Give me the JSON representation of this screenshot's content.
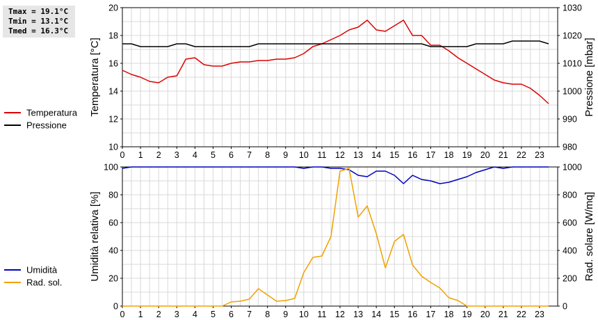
{
  "stats": [
    "Tmax = 19.1°C",
    "Tmin = 13.1°C",
    "Tmed = 16.3°C"
  ],
  "colors": {
    "temperature": "#dd0000",
    "pressure": "#000000",
    "humidity": "#0000bb",
    "radiation": "#f0a000"
  },
  "chart_data": [
    {
      "type": "line",
      "xlabel": "",
      "xlim": [
        0,
        24
      ],
      "xticks": [
        "0",
        "1",
        "2",
        "3",
        "4",
        "5",
        "6",
        "7",
        "8",
        "9",
        "10",
        "11",
        "12",
        "13",
        "14",
        "15",
        "16",
        "17",
        "18",
        "19",
        "20",
        "21",
        "22",
        "23"
      ],
      "ylabel": "Temperatura [°C]",
      "ylim": [
        10,
        20
      ],
      "yticks": [
        "10",
        "12",
        "14",
        "16",
        "18",
        "20"
      ],
      "y2label": "Pressione [mbar]",
      "y2lim": [
        980,
        1030
      ],
      "y2ticks": [
        "980",
        "990",
        "1000",
        "1010",
        "1020",
        "1030"
      ],
      "grid": true,
      "legend": "left",
      "series": [
        {
          "name": "Temperatura",
          "axis": "left",
          "x": [
            0,
            0.5,
            1,
            1.5,
            2,
            2.5,
            3,
            3.5,
            4,
            4.5,
            5,
            5.5,
            6,
            6.5,
            7,
            7.5,
            8,
            8.5,
            9,
            9.5,
            10,
            10.5,
            11,
            11.5,
            12,
            12.5,
            13,
            13.5,
            14,
            14.5,
            15,
            15.5,
            16,
            16.5,
            17,
            17.5,
            18,
            18.5,
            19,
            19.5,
            20,
            20.5,
            21,
            21.5,
            22,
            22.5,
            23,
            23.5
          ],
          "values": [
            15.5,
            15.2,
            15.0,
            14.7,
            14.6,
            15.0,
            15.1,
            16.3,
            16.4,
            15.9,
            15.8,
            15.8,
            16.0,
            16.1,
            16.1,
            16.2,
            16.2,
            16.3,
            16.3,
            16.4,
            16.7,
            17.2,
            17.4,
            17.7,
            18.0,
            18.4,
            18.6,
            19.1,
            18.4,
            18.3,
            18.7,
            19.1,
            18.0,
            18.0,
            17.3,
            17.3,
            16.9,
            16.4,
            16.0,
            15.6,
            15.2,
            14.8,
            14.6,
            14.5,
            14.5,
            14.2,
            13.7,
            13.1
          ]
        },
        {
          "name": "Pressione",
          "axis": "right",
          "x": [
            0,
            0.5,
            1,
            1.5,
            2,
            2.5,
            3,
            3.5,
            4,
            4.5,
            5,
            5.5,
            6,
            6.5,
            7,
            7.5,
            8,
            8.5,
            9,
            9.5,
            10,
            10.5,
            11,
            11.5,
            12,
            12.5,
            13,
            13.5,
            14,
            14.5,
            15,
            15.5,
            16,
            16.5,
            17,
            17.5,
            18,
            18.5,
            19,
            19.5,
            20,
            20.5,
            21,
            21.5,
            22,
            22.5,
            23,
            23.5
          ],
          "values": [
            1017,
            1017,
            1016,
            1016,
            1016,
            1016,
            1017,
            1017,
            1016,
            1016,
            1016,
            1016,
            1016,
            1016,
            1016,
            1017,
            1017,
            1017,
            1017,
            1017,
            1017,
            1017,
            1017,
            1017,
            1017,
            1017,
            1017,
            1017,
            1017,
            1017,
            1017,
            1017,
            1017,
            1017,
            1016,
            1016,
            1016,
            1016,
            1016,
            1017,
            1017,
            1017,
            1017,
            1018,
            1018,
            1018,
            1018,
            1017
          ]
        }
      ]
    },
    {
      "type": "line",
      "xlabel": "",
      "xlim": [
        0,
        24
      ],
      "xticks": [
        "0",
        "1",
        "2",
        "3",
        "4",
        "5",
        "6",
        "7",
        "8",
        "9",
        "10",
        "11",
        "12",
        "13",
        "14",
        "15",
        "16",
        "17",
        "18",
        "19",
        "20",
        "21",
        "22",
        "23"
      ],
      "ylabel": "Umidità relativa [%]",
      "ylim": [
        0,
        100
      ],
      "yticks": [
        "0",
        "20",
        "40",
        "60",
        "80",
        "100"
      ],
      "y2label": "Rad. solare [W/mq]",
      "y2lim": [
        0,
        1000
      ],
      "y2ticks": [
        "0",
        "200",
        "400",
        "600",
        "800",
        "1000"
      ],
      "grid": true,
      "legend": "left",
      "series": [
        {
          "name": "Umidità",
          "axis": "left",
          "x": [
            0,
            0.5,
            1,
            1.5,
            2,
            2.5,
            3,
            3.5,
            4,
            4.5,
            5,
            5.5,
            6,
            6.5,
            7,
            7.5,
            8,
            8.5,
            9,
            9.5,
            10,
            10.5,
            11,
            11.5,
            12,
            12.5,
            13,
            13.5,
            14,
            14.5,
            15,
            15.5,
            16,
            16.5,
            17,
            17.5,
            18,
            18.5,
            19,
            19.5,
            20,
            20.5,
            21,
            21.5,
            22,
            22.5,
            23,
            23.5
          ],
          "values": [
            99,
            100,
            100,
            100,
            100,
            100,
            100,
            100,
            100,
            100,
            100,
            100,
            100,
            100,
            100,
            100,
            100,
            100,
            100,
            100,
            99,
            100,
            100,
            99,
            99,
            98,
            94,
            93,
            97,
            97,
            94,
            88,
            94,
            91,
            90,
            88,
            89,
            91,
            93,
            96,
            98,
            100,
            99,
            100,
            100,
            100,
            100,
            100
          ]
        },
        {
          "name": "Rad. sol.",
          "axis": "right",
          "x": [
            0,
            0.5,
            1,
            1.5,
            2,
            2.5,
            3,
            3.5,
            4,
            4.5,
            5,
            5.5,
            6,
            6.5,
            7,
            7.5,
            8,
            8.5,
            9,
            9.5,
            10,
            10.5,
            11,
            11.5,
            12,
            12.5,
            13,
            13.5,
            14,
            14.5,
            15,
            15.5,
            16,
            16.5,
            17,
            17.5,
            18,
            18.5,
            19,
            19.5,
            20,
            20.5,
            21,
            21.5,
            22,
            22.5,
            23,
            23.5
          ],
          "values": [
            0,
            0,
            0,
            0,
            0,
            0,
            0,
            0,
            0,
            0,
            0,
            0,
            30,
            35,
            50,
            125,
            80,
            35,
            40,
            55,
            240,
            350,
            360,
            500,
            970,
            990,
            640,
            720,
            520,
            275,
            465,
            515,
            295,
            215,
            170,
            130,
            60,
            40,
            0,
            0,
            0,
            0,
            0,
            0,
            0,
            0,
            0,
            0
          ]
        }
      ]
    }
  ]
}
